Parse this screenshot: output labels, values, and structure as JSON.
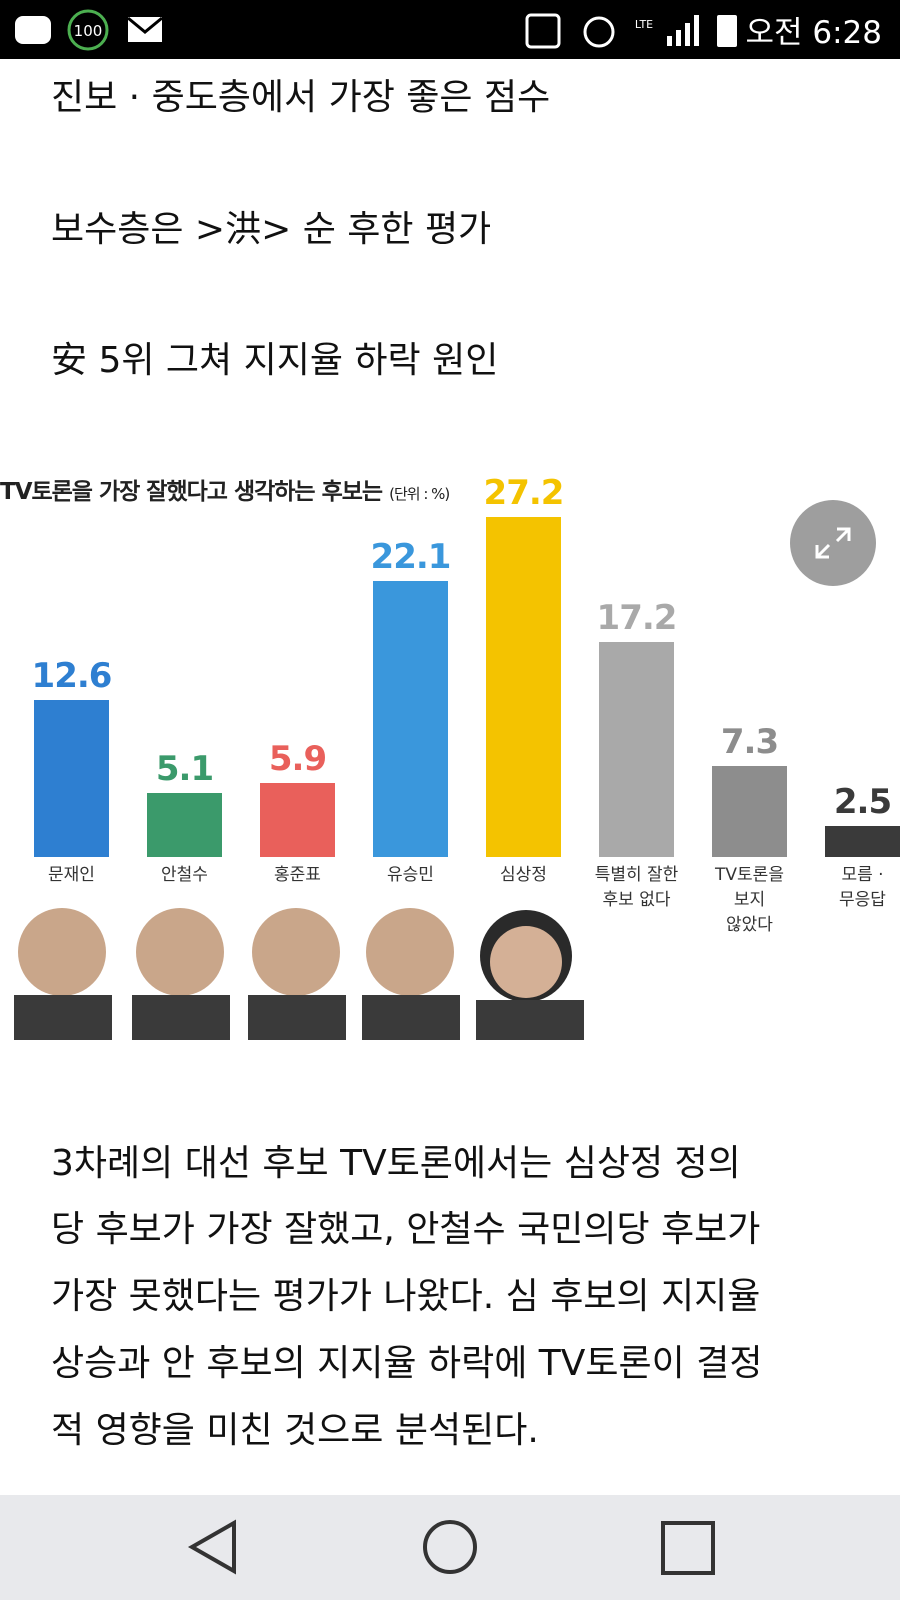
{
  "status_bar": {
    "battery_saver": "100",
    "network": "LTE",
    "time": "오전 6:28"
  },
  "headlines": [
    "진보 · 중도층에서 가장 좋은 점수",
    "보수층은 >洪> 순 후한 평가",
    "安 5위 그쳐 지지율 하락 원인"
  ],
  "chart_data": {
    "type": "bar",
    "title": "TV토론을 가장 잘했다고 생각하는 후보는",
    "subtitle": "(단위 : %)",
    "categories": [
      "문재인",
      "안철수",
      "홍준표",
      "유승민",
      "심상정",
      "특별히 잘한\n후보 없다",
      "TV토론을\n보지\n않았다",
      "모름 ·\n무응답"
    ],
    "values": [
      12.6,
      5.1,
      5.9,
      22.1,
      27.2,
      17.2,
      7.3,
      2.5
    ],
    "colors": [
      "#2e7fd1",
      "#3b9a6b",
      "#e9605b",
      "#3a97dc",
      "#f4c300",
      "#a9a9a9",
      "#8d8d8d",
      "#3a3a3a"
    ]
  },
  "paragraph_lines": [
    "3차례의 대선 후보 TV토론에서는 심상정 정의",
    "당 후보가 가장 잘했고, 안철수 국민의당 후보가",
    "가장 못했다는 평가가 나왔다. 심 후보의 지지율",
    "상승과 안 후보의 지지율 하락에 TV토론이 결정",
    "적 영향을 미친 것으로 분석된다."
  ]
}
